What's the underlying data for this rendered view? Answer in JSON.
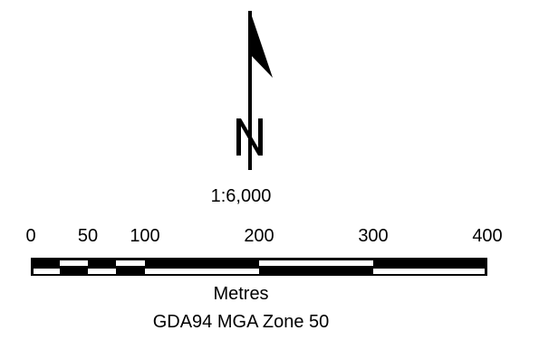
{
  "north_arrow": {
    "letter": "N",
    "icon": "north-arrow-icon"
  },
  "scale": {
    "ratio": "1:6,000",
    "units": "Metres",
    "ticks": [
      "0",
      "50",
      "100",
      "200",
      "300",
      "400"
    ]
  },
  "crs": "GDA94 MGA Zone 50",
  "colors": {
    "ink": "#000000",
    "paper": "#ffffff"
  }
}
